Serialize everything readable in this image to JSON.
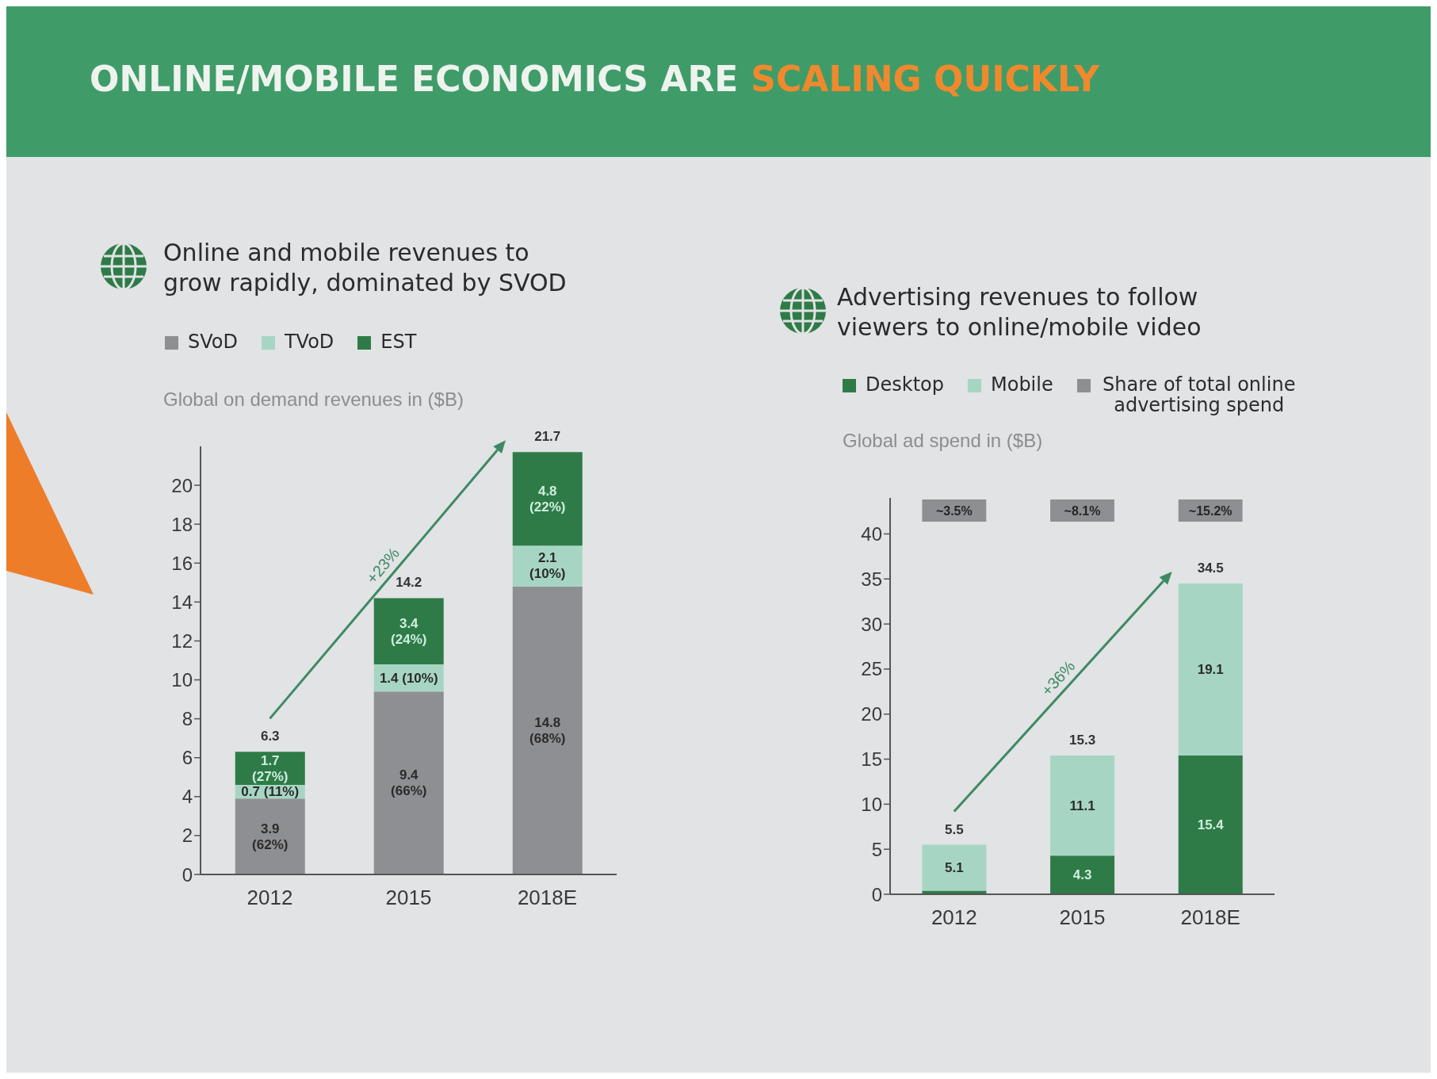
{
  "chart_data": [
    {
      "type": "other",
      "title": "ONLINE/MOBILE ECONOMICS ARE",
      "subtitle": "SCALING QUICKLY"
    },
    {
      "type": "bar",
      "title": "Online and mobile revenues to grow rapidly, dominated by SVOD",
      "ylabel": "Global on demand revenues in ($B)",
      "categories": [
        "2012",
        "2015",
        "2018E"
      ],
      "stacked": true,
      "series": [
        {
          "name": "SVoD",
          "color": "#8e8f93",
          "values": [
            3.9,
            9.4,
            14.8
          ],
          "value_labels": [
            "3.9\n(62%)",
            "9.4\n(66%)",
            "14.8\n(68%)"
          ]
        },
        {
          "name": "TVoD",
          "color": "#a6d6c3",
          "values": [
            0.7,
            1.4,
            2.1
          ],
          "value_labels": [
            "0.7 (11%)",
            "1.4 (10%)",
            "2.1\n(10%)"
          ]
        },
        {
          "name": "EST",
          "color": "#2e7b47",
          "values": [
            1.7,
            3.4,
            4.8
          ],
          "value_labels": [
            "1.7\n(27%)",
            "3.4\n(24%)",
            "4.8\n(22%)"
          ]
        }
      ],
      "totals": [
        "6.3",
        "14.2",
        "21.7"
      ],
      "ylim": [
        0,
        22
      ],
      "yticks": [
        0,
        2,
        4,
        6,
        8,
        10,
        12,
        14,
        16,
        18,
        20
      ],
      "legend": "top left",
      "annotations": [
        "+23%"
      ]
    },
    {
      "type": "bar",
      "title": "Advertising revenues to follow viewers to online/mobile video",
      "ylabel": "Global ad spend in ($B)",
      "categories": [
        "2012",
        "2015",
        "2018E"
      ],
      "stacked": true,
      "series": [
        {
          "name": "Desktop",
          "color": "#2e7b47",
          "values": [
            0.4,
            4.3,
            15.4
          ],
          "value_labels": [
            null,
            "4.3",
            "15.4"
          ]
        },
        {
          "name": "Mobile",
          "color": "#a6d6c3",
          "values": [
            5.1,
            11.1,
            19.1
          ],
          "value_labels": [
            "5.1",
            "11.1",
            "19.1"
          ]
        },
        {
          "name": "Share of total online advertising spend",
          "type": "other",
          "color": "#8e8f93",
          "values": [
            null,
            null,
            null
          ]
        }
      ],
      "totals": [
        "5.5",
        "15.3",
        "34.5"
      ],
      "ylim": [
        0,
        44
      ],
      "yticks": [
        0,
        5,
        10,
        15,
        20,
        25,
        30,
        35,
        40
      ],
      "legend": "top left",
      "annotations": [
        "+36%",
        "~3.5%",
        "~8.1%",
        "~15.2%"
      ]
    }
  ]
}
